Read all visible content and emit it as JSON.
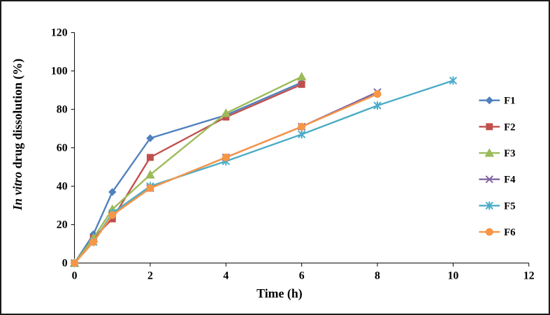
{
  "chart_data": {
    "type": "line",
    "title": "",
    "xlabel": "Time (h)",
    "ylabel_italic": "In vitro",
    "ylabel_rest": " drug dissolution (%)",
    "xlim": [
      0,
      12
    ],
    "ylim": [
      0,
      120
    ],
    "xticks": [
      0,
      2,
      4,
      6,
      8,
      10,
      12
    ],
    "yticks": [
      0,
      20,
      40,
      60,
      80,
      100,
      120
    ],
    "grid": false,
    "legend_position": "right",
    "axis_color": "#000000",
    "series": [
      {
        "name": "F1",
        "color": "#4F81BD",
        "marker": "diamond",
        "points": [
          [
            0,
            0
          ],
          [
            0.5,
            15
          ],
          [
            1,
            37
          ],
          [
            2,
            65
          ],
          [
            4,
            77
          ],
          [
            6,
            94
          ]
        ]
      },
      {
        "name": "F2",
        "color": "#C0504D",
        "marker": "square",
        "points": [
          [
            0,
            0
          ],
          [
            0.5,
            13
          ],
          [
            1,
            23
          ],
          [
            2,
            55
          ],
          [
            4,
            76
          ],
          [
            6,
            93
          ]
        ]
      },
      {
        "name": "F3",
        "color": "#9BBB59",
        "marker": "triangle",
        "points": [
          [
            0,
            0
          ],
          [
            0.5,
            13
          ],
          [
            1,
            28
          ],
          [
            2,
            46
          ],
          [
            4,
            78
          ],
          [
            6,
            97
          ]
        ]
      },
      {
        "name": "F4",
        "color": "#8064A2",
        "marker": "x",
        "points": [
          [
            0,
            0
          ],
          [
            0.5,
            11
          ],
          [
            1,
            25
          ],
          [
            2,
            39
          ],
          [
            4,
            55
          ],
          [
            6,
            71
          ],
          [
            8,
            89
          ]
        ]
      },
      {
        "name": "F5",
        "color": "#4BACC6",
        "marker": "asterisk",
        "points": [
          [
            0,
            0
          ],
          [
            0.5,
            11
          ],
          [
            1,
            26
          ],
          [
            2,
            40
          ],
          [
            4,
            53
          ],
          [
            6,
            67
          ],
          [
            8,
            82
          ],
          [
            10,
            95
          ]
        ]
      },
      {
        "name": "F6",
        "color": "#F79646",
        "marker": "circle",
        "points": [
          [
            0,
            0
          ],
          [
            0.5,
            11
          ],
          [
            1,
            25
          ],
          [
            2,
            39
          ],
          [
            4,
            55
          ],
          [
            6,
            71
          ],
          [
            8,
            88
          ]
        ]
      }
    ]
  }
}
